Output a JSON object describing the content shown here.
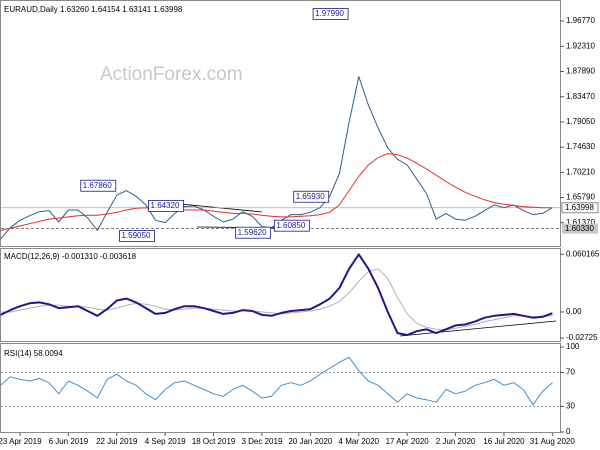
{
  "chart_data": [
    {
      "type": "line",
      "title": "EURAUD,Daily 1.63260 1.64154 1.63141 1.63998",
      "watermark": "ActionForex.com",
      "ylim": [
        1.5764,
        1.9991
      ],
      "yticks": [
        {
          "value": 1.9677,
          "label": "1.96770"
        },
        {
          "value": 1.9231,
          "label": "1.92310"
        },
        {
          "value": 1.8789,
          "label": "1.87890"
        },
        {
          "value": 1.8347,
          "label": "1.83470"
        },
        {
          "value": 1.7905,
          "label": "1.79050"
        },
        {
          "value": 1.7463,
          "label": "1.74630"
        },
        {
          "value": 1.7021,
          "label": "1.70210"
        },
        {
          "value": 1.6579,
          "label": "1.65790"
        },
        {
          "value": 1.6137,
          "label": "1.61370"
        }
      ],
      "price_tags": [
        {
          "value": 1.63998,
          "label": "1.63998"
        },
        {
          "value": 1.6033,
          "label": "1.60330"
        }
      ],
      "annotations": [
        {
          "label": "1.97990",
          "value": 1.9799,
          "at": 36
        },
        {
          "label": "1.67860",
          "value": 1.6786,
          "at": 12
        },
        {
          "label": "1.64320",
          "value": 1.6432,
          "at": 19
        },
        {
          "label": "1.59050",
          "value": 1.5905,
          "at": 16
        },
        {
          "label": "1.59620",
          "value": 1.5962,
          "at": 28
        },
        {
          "label": "1.60850",
          "value": 1.6085,
          "at": 32
        },
        {
          "label": "1.65930",
          "value": 1.6593,
          "at": 34
        }
      ],
      "series": [
        {
          "color": "#2f5f8a",
          "values": [
            1.585,
            1.605,
            1.618,
            1.626,
            1.633,
            1.635,
            1.615,
            1.636,
            1.636,
            1.622,
            1.6,
            1.632,
            1.662,
            1.67,
            1.66,
            1.645,
            1.618,
            1.614,
            1.63,
            1.642,
            1.643,
            1.636,
            1.625,
            1.615,
            1.62,
            1.633,
            1.625,
            1.607,
            1.605,
            1.618,
            1.628,
            1.628,
            1.632,
            1.64,
            1.66,
            1.7,
            1.79,
            1.87,
            1.82,
            1.78,
            1.745,
            1.725,
            1.715,
            1.69,
            1.665,
            1.62,
            1.63,
            1.62,
            1.618,
            1.625,
            1.635,
            1.645,
            1.64,
            1.645,
            1.635,
            1.628,
            1.63,
            1.64
          ]
        },
        {
          "color": "#e03030",
          "values": [
            1.6,
            1.604,
            1.608,
            1.612,
            1.616,
            1.62,
            1.622,
            1.624,
            1.626,
            1.627,
            1.627,
            1.629,
            1.632,
            1.636,
            1.639,
            1.64,
            1.639,
            1.637,
            1.636,
            1.636,
            1.636,
            1.636,
            1.634,
            1.632,
            1.63,
            1.63,
            1.629,
            1.627,
            1.625,
            1.624,
            1.624,
            1.625,
            1.626,
            1.628,
            1.632,
            1.645,
            1.67,
            1.695,
            1.715,
            1.728,
            1.735,
            1.733,
            1.727,
            1.718,
            1.708,
            1.697,
            1.686,
            1.676,
            1.667,
            1.66,
            1.654,
            1.649,
            1.646,
            1.644,
            1.642,
            1.641,
            1.64,
            1.64
          ]
        }
      ]
    },
    {
      "type": "line",
      "title": "MACD(12,26,9) -0.001310 -0.003618",
      "ylim": [
        -0.0292,
        0.0646
      ],
      "yticks": [
        0.060165,
        {
          "value": 0,
          "label": "0.00"
        },
        -0.02725
      ],
      "series": [
        {
          "color": "#b0b0b0",
          "values": [
            0,
            0,
            0.002,
            0.004,
            0.006,
            0.007,
            0.007,
            0.006,
            0.006,
            0.005,
            0.003,
            0.002,
            0.004,
            0.007,
            0.009,
            0.008,
            0.006,
            0.003,
            0.002,
            0.003,
            0.004,
            0.004,
            0.003,
            0.002,
            0.001,
            0.001,
            0.001,
            0,
            -0.001,
            -0.002,
            -0.001,
            0,
            0.001,
            0.003,
            0.006,
            0.011,
            0.02,
            0.032,
            0.042,
            0.045,
            0.035,
            0.015,
            -0.002,
            -0.012,
            -0.016,
            -0.018,
            -0.019,
            -0.017,
            -0.015,
            -0.013,
            -0.01,
            -0.008,
            -0.006,
            -0.004,
            -0.004,
            -0.005,
            -0.005,
            -0.003618
          ]
        },
        {
          "color": "#1a1a8c",
          "values": [
            -0.003,
            0.002,
            0.006,
            0.009,
            0.01,
            0.008,
            0.004,
            0.005,
            0.006,
            0.001,
            -0.004,
            0.003,
            0.012,
            0.014,
            0.01,
            0.004,
            -0.002,
            -0.001,
            0.003,
            0.006,
            0.006,
            0.004,
            0.001,
            -0.002,
            -0.001,
            0.002,
            0.001,
            -0.003,
            -0.004,
            -0.001,
            0.001,
            0.002,
            0.003,
            0.008,
            0.014,
            0.025,
            0.045,
            0.06,
            0.045,
            0.025,
            0,
            -0.022,
            -0.024,
            -0.02,
            -0.018,
            -0.022,
            -0.018,
            -0.014,
            -0.013,
            -0.01,
            -0.006,
            -0.004,
            -0.003,
            -0.002,
            -0.004,
            -0.006,
            -0.005,
            -0.00131
          ]
        }
      ]
    },
    {
      "type": "line",
      "title": "RSI(14) 58.0094",
      "ylim": [
        0,
        100
      ],
      "yticks": [
        100,
        70,
        30,
        0
      ],
      "grid": true,
      "categories": [
        null,
        null,
        "23 Apr 2019",
        null,
        null,
        null,
        null,
        "6 Jun 2019",
        null,
        null,
        null,
        null,
        "22 Jul 2019",
        null,
        null,
        null,
        null,
        "4 Sep 2019",
        null,
        null,
        null,
        null,
        "18 Oct 2019",
        null,
        null,
        null,
        null,
        "3 Dec 2019",
        null,
        null,
        null,
        null,
        "20 Jan 2020",
        null,
        null,
        null,
        null,
        "4 Mar 2020",
        null,
        null,
        null,
        null,
        "17 Apr 2020",
        null,
        null,
        null,
        null,
        "2 Jun 2020",
        null,
        null,
        null,
        null,
        "16 Jul 2020",
        null,
        null,
        null,
        null,
        "31 Aug 2020"
      ],
      "series": [
        {
          "color": "#3d8fd6",
          "values": [
            55,
            65,
            62,
            60,
            63,
            58,
            45,
            60,
            55,
            48,
            40,
            62,
            68,
            60,
            55,
            45,
            38,
            50,
            58,
            60,
            55,
            50,
            45,
            42,
            50,
            55,
            48,
            40,
            42,
            55,
            58,
            55,
            60,
            68,
            75,
            82,
            88,
            72,
            60,
            55,
            45,
            35,
            45,
            40,
            38,
            35,
            50,
            45,
            48,
            55,
            58,
            62,
            55,
            58,
            50,
            32,
            48,
            58.0094
          ]
        }
      ]
    }
  ]
}
